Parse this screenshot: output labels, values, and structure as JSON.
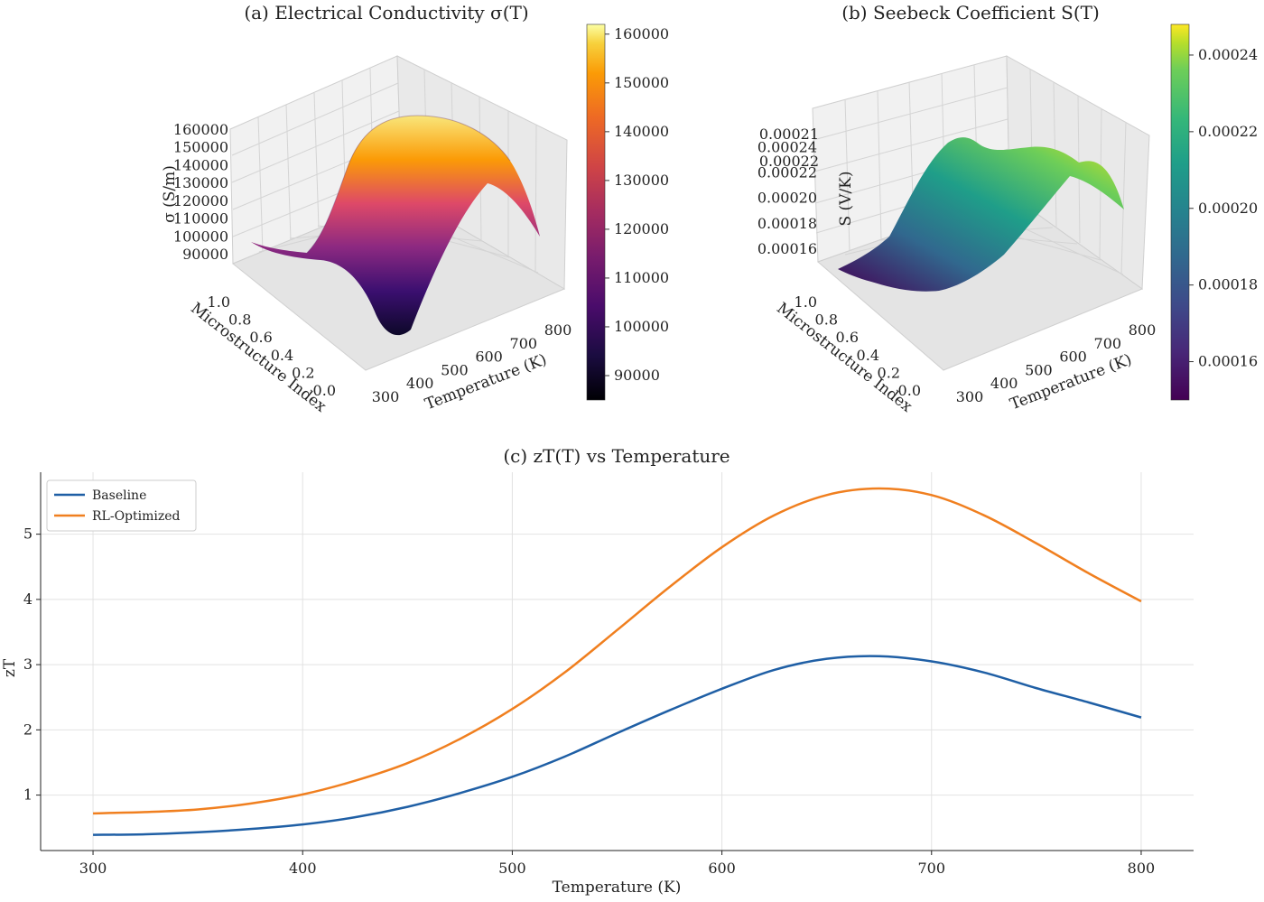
{
  "chart_data": [
    {
      "id": "a",
      "type": "surface3d",
      "title": "(a) Electrical Conductivity σ(T)",
      "xlabel": "Temperature (K)",
      "ylabel": "Microstructure Index",
      "zlabel": "σ (S/m)",
      "x_ticks": [
        "300",
        "400",
        "500",
        "600",
        "700",
        "800"
      ],
      "y_ticks": [
        "0.0",
        "0.2",
        "0.4",
        "0.6",
        "0.8",
        "1.0"
      ],
      "z_ticks": [
        "90000",
        "100000",
        "110000",
        "120000",
        "130000",
        "140000",
        "150000",
        "160000"
      ],
      "xlim": [
        300,
        800
      ],
      "ylim": [
        0,
        1
      ],
      "zlim": [
        85000,
        162000
      ],
      "colormap": "inferno",
      "colorbar_ticks": [
        "90000",
        "100000",
        "110000",
        "120000",
        "130000",
        "140000",
        "150000",
        "160000"
      ],
      "colorbar_range": [
        85000,
        162000
      ]
    },
    {
      "id": "b",
      "type": "surface3d",
      "title": "(b) Seebeck Coefficient S(T)",
      "xlabel": "Temperature (K)",
      "ylabel": "Microstructure Index",
      "zlabel": "S (V/K)",
      "x_ticks": [
        "300",
        "400",
        "500",
        "600",
        "700",
        "800"
      ],
      "y_ticks": [
        "0.0",
        "0.2",
        "0.4",
        "0.6",
        "0.8",
        "1.0"
      ],
      "z_ticks": [
        "0.00016",
        "0.00018",
        "0.00020",
        "0.00022",
        "0.00024"
      ],
      "z_ticks_overlapped": [
        "0.00021",
        "0.00022"
      ],
      "xlim": [
        300,
        800
      ],
      "ylim": [
        0,
        1
      ],
      "zlim": [
        0.00015,
        0.000248
      ],
      "colormap": "viridis",
      "colorbar_ticks": [
        "0.00016",
        "0.00018",
        "0.00020",
        "0.00022",
        "0.00024"
      ],
      "colorbar_range": [
        0.00015,
        0.000248
      ]
    },
    {
      "id": "c",
      "type": "line",
      "title": "(c) zT(T) vs Temperature",
      "xlabel": "Temperature (K)",
      "ylabel": "zT",
      "xlim": [
        275,
        825
      ],
      "ylim": [
        0.15,
        5.95
      ],
      "x_ticks": [
        300,
        400,
        500,
        600,
        700,
        800
      ],
      "y_ticks": [
        1,
        2,
        3,
        4,
        5
      ],
      "grid": true,
      "legend_position": "top-left",
      "x": [
        300,
        325,
        350,
        375,
        400,
        425,
        450,
        475,
        500,
        525,
        550,
        575,
        600,
        625,
        650,
        675,
        700,
        725,
        750,
        775,
        800
      ],
      "series": [
        {
          "name": "Baseline",
          "color": "#1f5fa5",
          "values": [
            0.39,
            0.4,
            0.43,
            0.48,
            0.55,
            0.66,
            0.82,
            1.03,
            1.28,
            1.59,
            1.95,
            2.3,
            2.63,
            2.92,
            3.09,
            3.13,
            3.05,
            2.88,
            2.64,
            2.42,
            2.19
          ]
        },
        {
          "name": "RL-Optimized",
          "color": "#f07f1f",
          "values": [
            0.72,
            0.74,
            0.78,
            0.87,
            1.01,
            1.22,
            1.49,
            1.86,
            2.32,
            2.88,
            3.53,
            4.19,
            4.8,
            5.29,
            5.6,
            5.7,
            5.6,
            5.29,
            4.86,
            4.4,
            3.97
          ]
        }
      ]
    }
  ]
}
